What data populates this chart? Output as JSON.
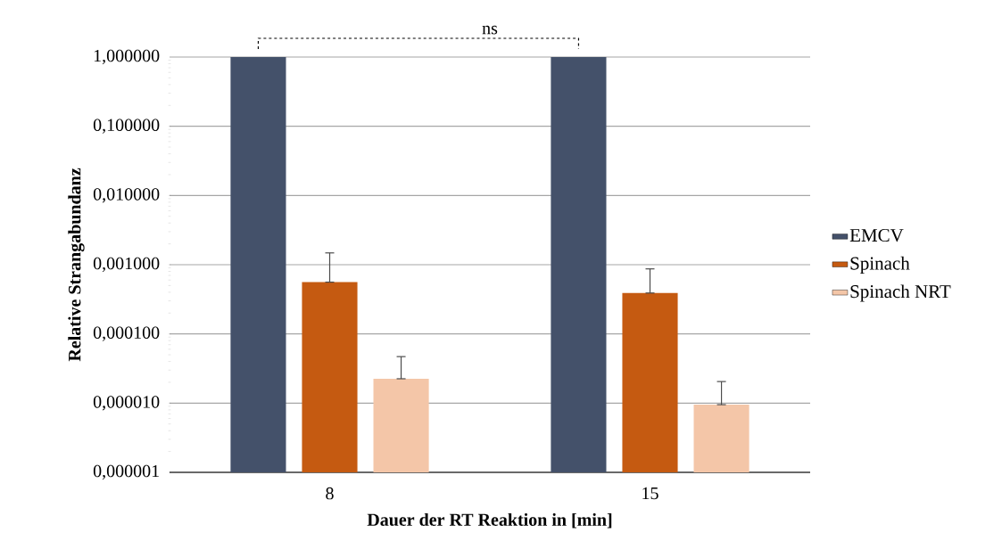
{
  "chart_data": {
    "type": "bar",
    "categories": [
      "8",
      "15"
    ],
    "xlabel": "Dauer der RT Reaktion in [min]",
    "ylabel": "Relative Strangabundanz",
    "log": "y",
    "ylim": [
      1e-06,
      1
    ],
    "yticks": [
      {
        "value": 1e-06,
        "label": "0,000001"
      },
      {
        "value": 1e-05,
        "label": "0,000010"
      },
      {
        "value": 0.0001,
        "label": "0,000100"
      },
      {
        "value": 0.001,
        "label": "0,001000"
      },
      {
        "value": 0.01,
        "label": "0,010000"
      },
      {
        "value": 0.1,
        "label": "0,100000"
      },
      {
        "value": 1,
        "label": "1,000000"
      }
    ],
    "grid": "y",
    "legend": "right",
    "annotations": [
      "ns"
    ],
    "series": [
      {
        "name": "EMCV",
        "color": "#44516a",
        "values": [
          1,
          1
        ]
      },
      {
        "name": "Spinach",
        "color": "#c55a11",
        "values": [
          0.00056,
          0.00039
        ],
        "errors": [
          [
            0.00056,
            0.00148
          ],
          [
            0.00039,
            0.00087
          ]
        ]
      },
      {
        "name": "Spinach NRT",
        "color": "#f4c6a8",
        "values": [
          2.25e-05,
          9.5e-06
        ],
        "errors": [
          [
            2.25e-05,
            4.7e-05
          ],
          [
            9.5e-06,
            2.05e-05
          ]
        ]
      }
    ]
  }
}
